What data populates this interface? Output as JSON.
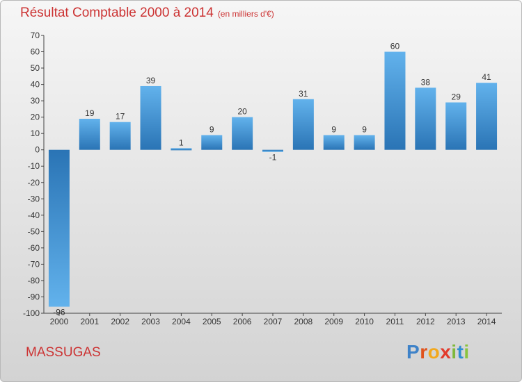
{
  "header": {
    "title": "Résultat Comptable 2000 à 2014",
    "subtitle": "(en milliers d'€)"
  },
  "footer": {
    "place": "MASSUGAS",
    "logo_text": "Proxiti"
  },
  "colors": {
    "title": "#cc3333",
    "bar_light": "#62b2ec",
    "bar_dark": "#2a74b5"
  },
  "chart_data": {
    "type": "bar",
    "title": "Résultat Comptable 2000 à 2014",
    "subtitle": "(en milliers d'€)",
    "categories": [
      "2000",
      "2001",
      "2002",
      "2003",
      "2004",
      "2005",
      "2006",
      "2007",
      "2008",
      "2009",
      "2010",
      "2011",
      "2012",
      "2013",
      "2014"
    ],
    "values": [
      -96,
      19,
      17,
      39,
      1,
      9,
      20,
      -1,
      31,
      9,
      9,
      60,
      38,
      29,
      41
    ],
    "data_labels": [
      "-96",
      "19",
      "17",
      "39",
      "1",
      "9",
      "20",
      "-1",
      "31",
      "9",
      "9",
      "60",
      "38",
      "29",
      "41"
    ],
    "ylim": [
      -100,
      70
    ],
    "yticks": [
      70,
      60,
      50,
      40,
      30,
      20,
      10,
      0,
      -10,
      -20,
      -30,
      -40,
      -50,
      -60,
      -70,
      -80,
      -90,
      -100
    ],
    "xlabel": "",
    "ylabel": "",
    "grid": false,
    "legend": "none"
  }
}
